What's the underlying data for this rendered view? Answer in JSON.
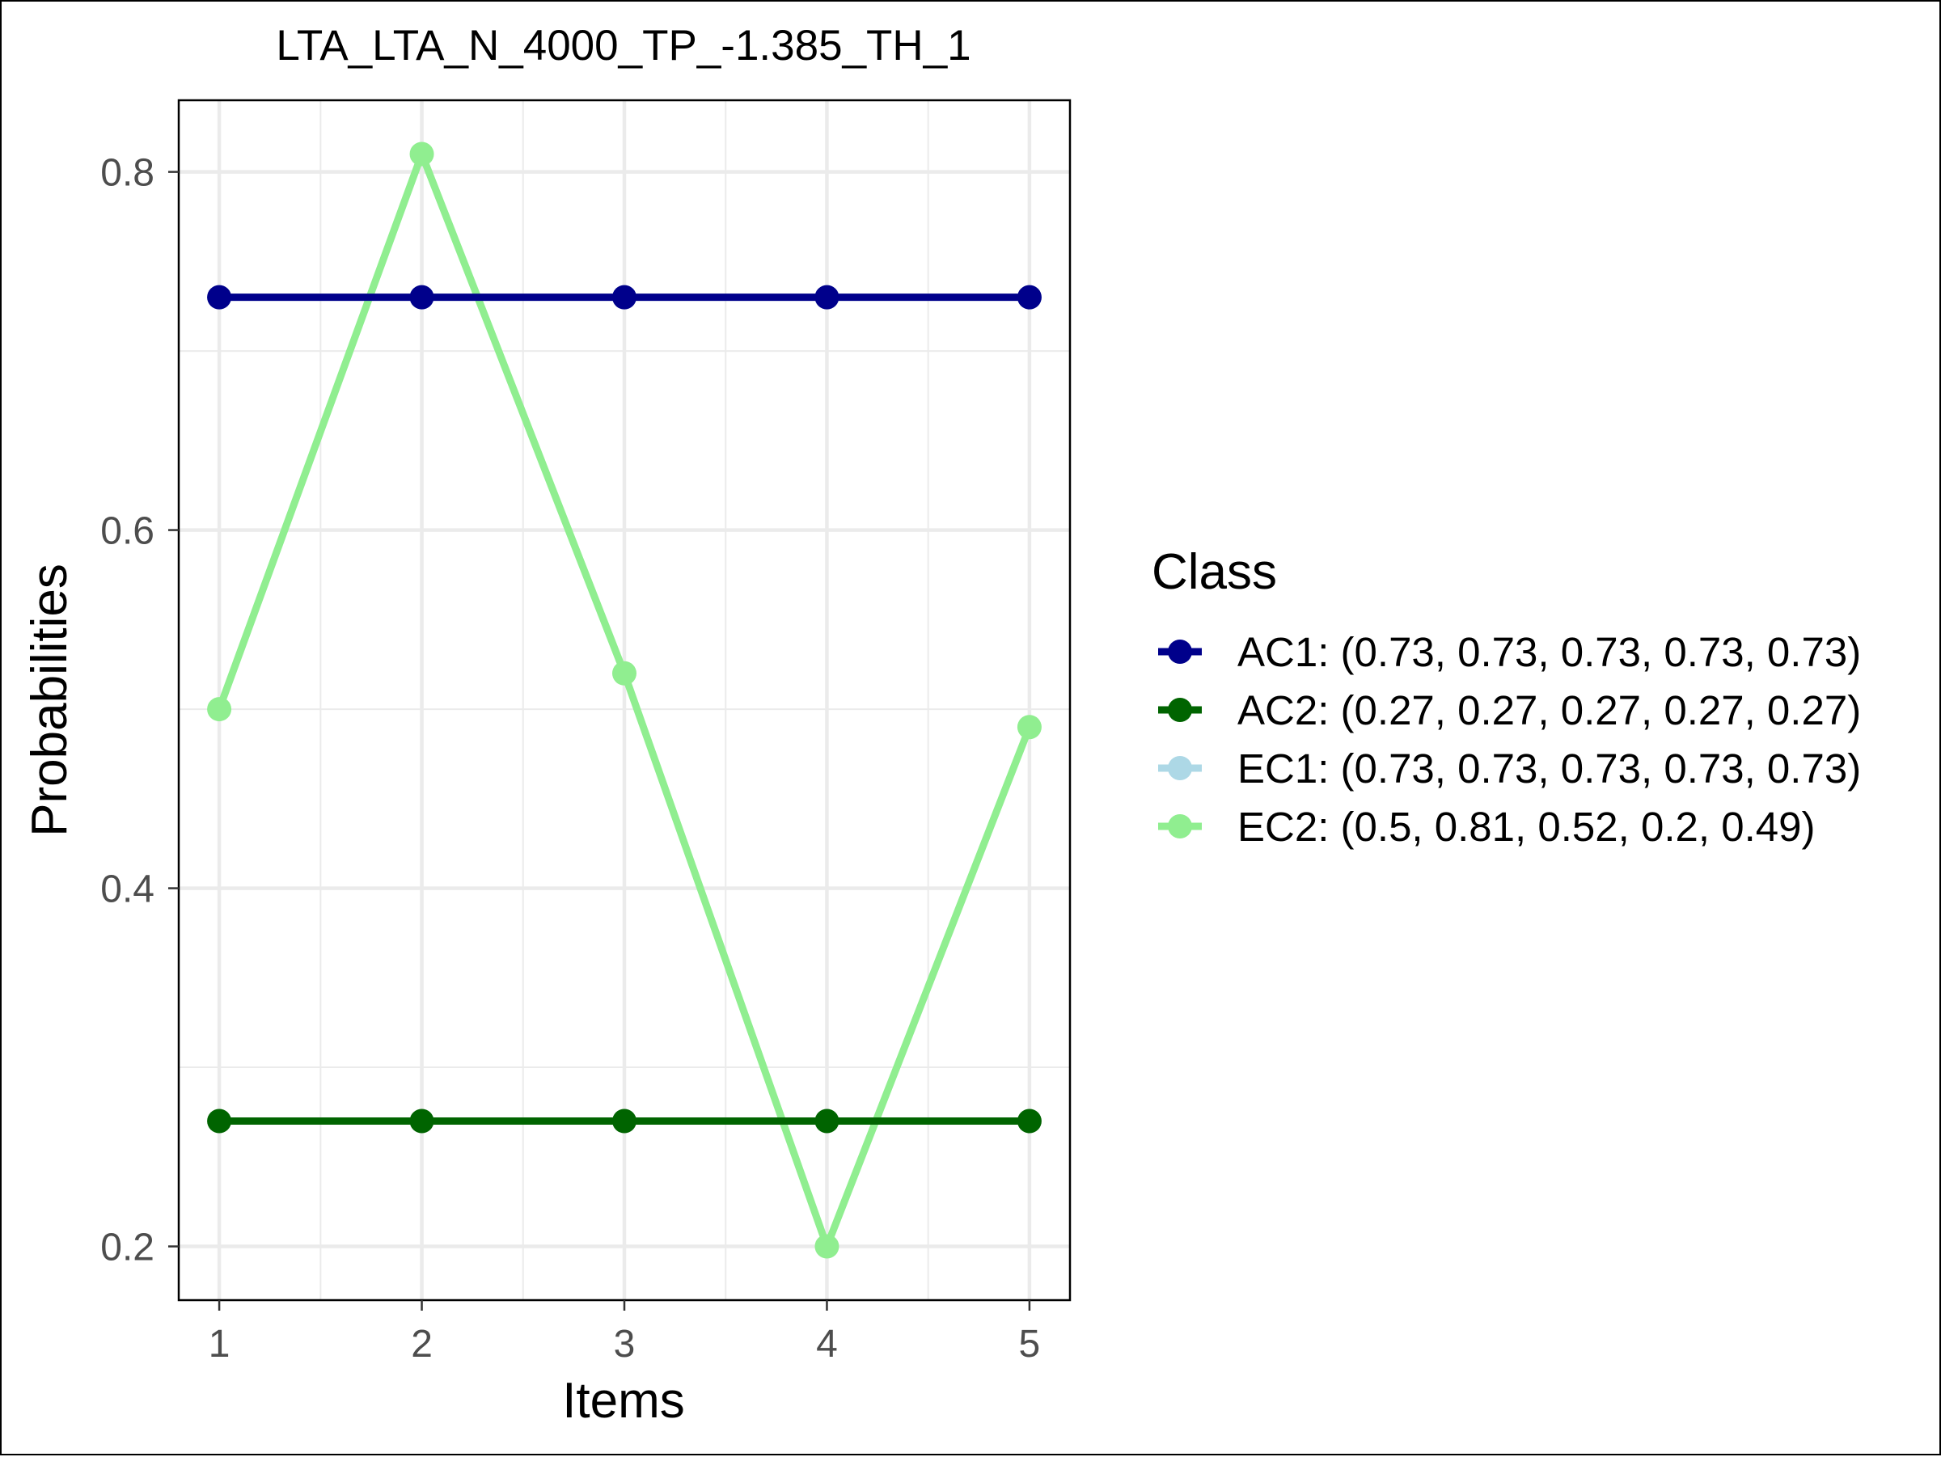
{
  "chart_data": {
    "type": "line",
    "title": "LTA_LTA_N_4000_TP_-1.385_TH_1",
    "xlabel": "Items",
    "ylabel": "Probabilities",
    "x": [
      1,
      2,
      3,
      4,
      5
    ],
    "x_tick_labels": [
      "1",
      "2",
      "3",
      "4",
      "5"
    ],
    "y_ticks": [
      0.2,
      0.4,
      0.6,
      0.8
    ],
    "y_tick_labels": [
      "0.2",
      "0.4",
      "0.6",
      "0.8"
    ],
    "xlim": [
      0.8,
      5.2
    ],
    "ylim": [
      0.17,
      0.84
    ],
    "grid": true,
    "legend": {
      "title": "Class",
      "position": "right"
    },
    "series": [
      {
        "name": "AC1",
        "legend_label": "AC1: (0.73, 0.73, 0.73, 0.73, 0.73)",
        "color": "#00008b",
        "values": [
          0.73,
          0.73,
          0.73,
          0.73,
          0.73
        ]
      },
      {
        "name": "AC2",
        "legend_label": "AC2: (0.27, 0.27, 0.27, 0.27, 0.27)",
        "color": "#006400",
        "values": [
          0.27,
          0.27,
          0.27,
          0.27,
          0.27
        ]
      },
      {
        "name": "EC1",
        "legend_label": "EC1: (0.73, 0.73, 0.73, 0.73, 0.73)",
        "color": "#add8e6",
        "values": [
          0.73,
          0.73,
          0.73,
          0.73,
          0.73
        ]
      },
      {
        "name": "EC2",
        "legend_label": "EC2: (0.5, 0.81, 0.52, 0.2, 0.49)",
        "color": "#90ee90",
        "values": [
          0.5,
          0.81,
          0.52,
          0.2,
          0.49
        ]
      }
    ],
    "draw_order": [
      2,
      3,
      1,
      0
    ]
  }
}
